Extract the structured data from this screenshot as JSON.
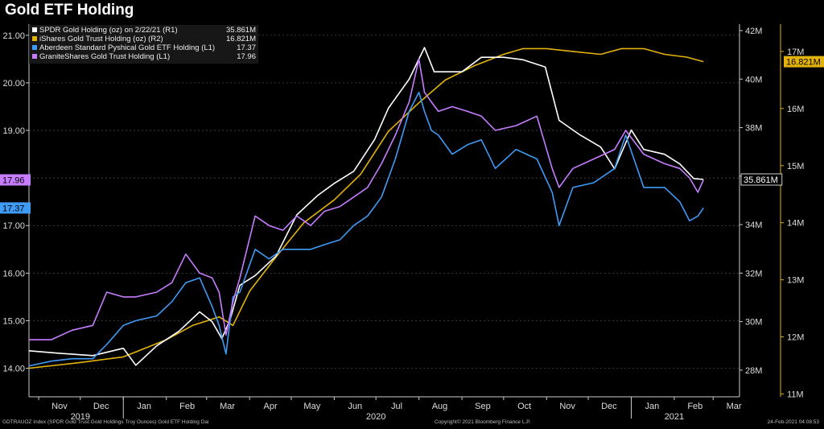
{
  "title": "Gold ETF Holding",
  "colors": {
    "background": "#000000",
    "spdr": "#ffffff",
    "ishares": "#e3b30c",
    "aberdeen": "#3f9bf5",
    "granite": "#c77dff",
    "axis": "#cccccc"
  },
  "footer": {
    "left": "GDTRAUOZ Index (SPDR Gold Trust Gold Holdings Troy Ounces) Gold ETF Holding  Dai",
    "center": "Copyright© 2021 Bloomberg Finance L.P.",
    "right": "24-Feb-2021 04:08:53"
  },
  "chart_data": {
    "type": "line",
    "title": "Gold ETF Holding",
    "x_range": [
      "2019-10-25",
      "2021-03-20"
    ],
    "month_labels": [
      "Nov",
      "Dec",
      "Jan",
      "Feb",
      "Mar",
      "Apr",
      "May",
      "Jun",
      "Jul",
      "Aug",
      "Sep",
      "Oct",
      "Nov",
      "Dec",
      "Jan",
      "Feb",
      "Mar"
    ],
    "month_dates": [
      "2019-11-01",
      "2019-12-01",
      "2020-01-01",
      "2020-02-01",
      "2020-03-01",
      "2020-04-01",
      "2020-05-01",
      "2020-06-01",
      "2020-07-01",
      "2020-08-01",
      "2020-09-01",
      "2020-10-01",
      "2020-11-01",
      "2020-12-01",
      "2021-01-01",
      "2021-02-01",
      "2021-03-01"
    ],
    "year_labels": [
      {
        "label": "2019",
        "date": "2019-12-01"
      },
      {
        "label": "2020",
        "date": "2020-07-01"
      },
      {
        "label": "2021",
        "date": "2021-02-01"
      }
    ],
    "axes": {
      "left": {
        "min": 13.4,
        "max": 21.2,
        "ticks": [
          "14.00",
          "15.00",
          "16.00",
          "17.00",
          "18.00",
          "19.00",
          "20.00",
          "21.00"
        ]
      },
      "right1": {
        "min": 26.9,
        "max": 42.2,
        "ticks": [
          "28M",
          "30M",
          "32M",
          "34M",
          "36M",
          "38M",
          "40M",
          "42M"
        ]
      },
      "right2": {
        "min": 10.95,
        "max": 17.45,
        "ticks": [
          "11M",
          "12M",
          "13M",
          "14M",
          "15M",
          "16M",
          "17M"
        ]
      }
    },
    "series": [
      {
        "name": "SPDR Gold Holding (oz) on 2/22/21 (R1)",
        "legend_value": "35.861M",
        "axis": "right1",
        "color": "#ffffff",
        "last_label": "35.861M",
        "x": [
          "2019-10-25",
          "2019-11-15",
          "2019-12-10",
          "2020-01-01",
          "2020-01-10",
          "2020-01-25",
          "2020-02-10",
          "2020-02-25",
          "2020-03-05",
          "2020-03-12",
          "2020-03-18",
          "2020-03-25",
          "2020-04-05",
          "2020-04-20",
          "2020-05-05",
          "2020-05-20",
          "2020-06-01",
          "2020-06-15",
          "2020-06-30",
          "2020-07-10",
          "2020-07-25",
          "2020-08-05",
          "2020-08-12",
          "2020-08-20",
          "2020-09-01",
          "2020-09-15",
          "2020-10-01",
          "2020-10-15",
          "2020-10-31",
          "2020-11-10",
          "2020-11-25",
          "2020-12-10",
          "2020-12-20",
          "2021-01-01",
          "2021-01-10",
          "2021-01-25",
          "2021-02-05",
          "2021-02-15",
          "2021-02-22"
        ],
        "y": [
          28.8,
          28.7,
          28.6,
          28.9,
          28.2,
          29.0,
          29.6,
          30.4,
          30.0,
          29.3,
          30.1,
          31.5,
          31.9,
          32.7,
          34.4,
          35.2,
          35.7,
          36.2,
          37.5,
          38.8,
          40.0,
          41.3,
          40.3,
          40.3,
          40.3,
          40.9,
          40.9,
          40.8,
          40.5,
          38.3,
          37.7,
          37.2,
          36.3,
          37.9,
          37.1,
          36.9,
          36.5,
          35.9,
          35.861
        ]
      },
      {
        "name": "iShares Gold Trust Holding (oz) (R2)",
        "legend_value": "16.821M",
        "axis": "right2",
        "color": "#e3b30c",
        "last_label": "16.821M",
        "x": [
          "2019-10-25",
          "2019-12-01",
          "2020-01-01",
          "2020-02-01",
          "2020-02-20",
          "2020-03-10",
          "2020-03-20",
          "2020-04-01",
          "2020-04-20",
          "2020-05-10",
          "2020-06-01",
          "2020-06-20",
          "2020-07-10",
          "2020-08-01",
          "2020-08-20",
          "2020-09-10",
          "2020-10-01",
          "2020-10-15",
          "2020-11-01",
          "2020-11-20",
          "2020-12-10",
          "2020-12-25",
          "2021-01-10",
          "2021-01-25",
          "2021-02-10",
          "2021-02-22"
        ],
        "y": [
          11.45,
          11.55,
          11.65,
          11.95,
          12.2,
          12.35,
          12.2,
          12.8,
          13.4,
          14.0,
          14.4,
          14.85,
          15.6,
          16.1,
          16.5,
          16.75,
          16.95,
          17.05,
          17.05,
          17.0,
          16.95,
          17.05,
          17.05,
          16.95,
          16.9,
          16.821
        ]
      },
      {
        "name": "Aberdeen Standard Pyshical Gold ETF Holding (L1)",
        "legend_value": "17.37",
        "axis": "left",
        "color": "#3f9bf5",
        "last_label": "17.37",
        "x": [
          "2019-10-25",
          "2019-11-10",
          "2019-11-25",
          "2019-12-10",
          "2019-12-20",
          "2020-01-01",
          "2020-01-10",
          "2020-01-25",
          "2020-02-05",
          "2020-02-15",
          "2020-02-25",
          "2020-03-05",
          "2020-03-10",
          "2020-03-15",
          "2020-03-20",
          "2020-03-25",
          "2020-04-05",
          "2020-04-15",
          "2020-04-25",
          "2020-05-05",
          "2020-05-15",
          "2020-05-25",
          "2020-06-05",
          "2020-06-15",
          "2020-06-25",
          "2020-07-05",
          "2020-07-15",
          "2020-07-25",
          "2020-08-01",
          "2020-08-05",
          "2020-08-10",
          "2020-08-15",
          "2020-08-25",
          "2020-09-05",
          "2020-09-15",
          "2020-09-25",
          "2020-10-10",
          "2020-10-25",
          "2020-11-05",
          "2020-11-10",
          "2020-11-20",
          "2020-12-05",
          "2020-12-20",
          "2020-12-28",
          "2021-01-10",
          "2021-01-25",
          "2021-02-05",
          "2021-02-12",
          "2021-02-18",
          "2021-02-22"
        ],
        "y": [
          14.05,
          14.15,
          14.2,
          14.2,
          14.5,
          14.9,
          15.0,
          15.1,
          15.4,
          15.8,
          15.9,
          15.3,
          14.9,
          14.3,
          15.5,
          15.6,
          16.5,
          16.3,
          16.5,
          16.5,
          16.5,
          16.6,
          16.7,
          17.0,
          17.2,
          17.6,
          18.4,
          19.4,
          19.8,
          19.4,
          19.0,
          18.9,
          18.5,
          18.7,
          18.8,
          18.2,
          18.6,
          18.4,
          17.7,
          17.0,
          17.8,
          17.9,
          18.2,
          18.9,
          17.8,
          17.8,
          17.5,
          17.1,
          17.2,
          17.37
        ]
      },
      {
        "name": "GraniteShares Gold Trust Holding  (L1)",
        "legend_value": "17.96",
        "axis": "left",
        "color": "#c77dff",
        "last_label": "17.96",
        "x": [
          "2019-10-25",
          "2019-11-10",
          "2019-11-25",
          "2019-12-10",
          "2019-12-20",
          "2020-01-01",
          "2020-01-10",
          "2020-01-25",
          "2020-02-05",
          "2020-02-15",
          "2020-02-25",
          "2020-03-05",
          "2020-03-10",
          "2020-03-15",
          "2020-03-20",
          "2020-03-25",
          "2020-04-05",
          "2020-04-15",
          "2020-04-25",
          "2020-05-05",
          "2020-05-15",
          "2020-05-25",
          "2020-06-05",
          "2020-06-15",
          "2020-06-25",
          "2020-07-05",
          "2020-07-15",
          "2020-07-25",
          "2020-08-01",
          "2020-08-05",
          "2020-08-10",
          "2020-08-15",
          "2020-08-25",
          "2020-09-05",
          "2020-09-15",
          "2020-09-25",
          "2020-10-10",
          "2020-10-25",
          "2020-11-05",
          "2020-11-10",
          "2020-11-20",
          "2020-12-05",
          "2020-12-20",
          "2020-12-28",
          "2021-01-10",
          "2021-01-25",
          "2021-02-05",
          "2021-02-12",
          "2021-02-18",
          "2021-02-22"
        ],
        "y": [
          14.6,
          14.6,
          14.8,
          14.9,
          15.6,
          15.5,
          15.5,
          15.6,
          15.8,
          16.4,
          16.0,
          15.9,
          15.6,
          14.7,
          15.4,
          15.9,
          17.2,
          17.0,
          16.9,
          17.2,
          17.0,
          17.3,
          17.4,
          17.6,
          17.8,
          18.3,
          18.9,
          19.6,
          20.5,
          19.8,
          19.6,
          19.4,
          19.5,
          19.4,
          19.3,
          19.0,
          19.1,
          19.3,
          18.2,
          17.8,
          18.2,
          18.4,
          18.6,
          19.0,
          18.5,
          18.3,
          18.2,
          18.0,
          17.7,
          17.96
        ]
      }
    ]
  }
}
